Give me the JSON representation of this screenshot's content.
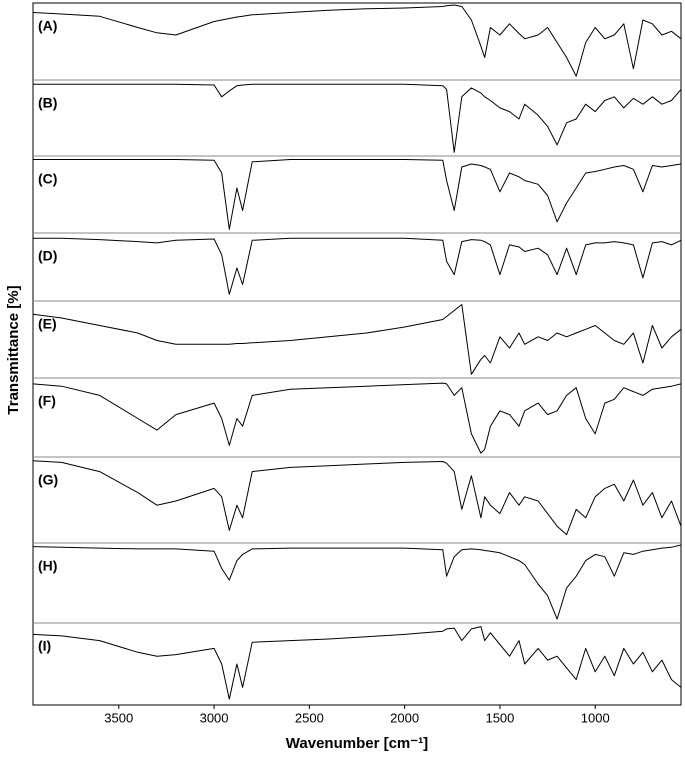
{
  "chart_data": {
    "type": "line",
    "xlabel": "Wavenumber [cm⁻¹]",
    "ylabel": "Transmittance [%]",
    "xlim": [
      3950,
      550
    ],
    "xticks": [
      3500,
      3000,
      2500,
      2000,
      1500,
      1000
    ],
    "x": [
      3950,
      3800,
      3600,
      3400,
      3300,
      3200,
      3000,
      2960,
      2920,
      2880,
      2850,
      2800,
      2600,
      2400,
      2200,
      2000,
      1800,
      1780,
      1740,
      1700,
      1650,
      1600,
      1580,
      1550,
      1500,
      1450,
      1400,
      1370,
      1300,
      1250,
      1200,
      1150,
      1100,
      1050,
      1000,
      950,
      900,
      850,
      800,
      750,
      700,
      650,
      600,
      550
    ],
    "ylim": [
      0,
      100
    ],
    "series": [
      {
        "name": "(A)",
        "color": "#000000",
        "values": [
          90,
          88,
          85,
          70,
          63,
          60,
          78,
          80,
          82,
          84,
          85,
          87,
          90,
          93,
          95,
          96,
          98,
          99,
          100,
          98,
          80,
          45,
          30,
          70,
          60,
          75,
          62,
          55,
          60,
          70,
          50,
          30,
          5,
          50,
          70,
          55,
          60,
          75,
          15,
          80,
          75,
          60,
          65,
          55
        ]
      },
      {
        "name": "(B)",
        "color": "#000000",
        "values": [
          97,
          97,
          97,
          97,
          97,
          97,
          96,
          80,
          88,
          95,
          96,
          97,
          97,
          97,
          97,
          97,
          95,
          90,
          5,
          80,
          92,
          85,
          80,
          75,
          65,
          60,
          50,
          70,
          55,
          40,
          15,
          45,
          50,
          70,
          60,
          75,
          80,
          65,
          78,
          70,
          80,
          70,
          75,
          90
        ]
      },
      {
        "name": "(C)",
        "color": "#000000",
        "values": [
          98,
          98,
          98,
          98,
          98,
          98,
          97,
          80,
          5,
          60,
          30,
          95,
          98,
          98,
          98,
          98,
          97,
          70,
          30,
          88,
          92,
          90,
          88,
          85,
          55,
          80,
          75,
          70,
          65,
          50,
          15,
          40,
          60,
          80,
          82,
          85,
          88,
          90,
          85,
          55,
          90,
          88,
          90,
          92
        ]
      },
      {
        "name": "(D)",
        "color": "#000000",
        "values": [
          95,
          95,
          93,
          90,
          88,
          92,
          94,
          70,
          10,
          50,
          25,
          92,
          95,
          95,
          95,
          95,
          92,
          60,
          40,
          90,
          93,
          92,
          90,
          85,
          40,
          85,
          82,
          75,
          80,
          70,
          40,
          80,
          40,
          85,
          88,
          88,
          90,
          88,
          85,
          35,
          88,
          90,
          85,
          92
        ]
      },
      {
        "name": "(E)",
        "color": "#000000",
        "values": [
          85,
          80,
          70,
          60,
          50,
          45,
          45,
          45,
          45,
          46,
          46,
          47,
          50,
          55,
          60,
          68,
          78,
          82,
          90,
          98,
          5,
          25,
          30,
          20,
          55,
          40,
          60,
          45,
          55,
          50,
          60,
          55,
          60,
          65,
          70,
          60,
          50,
          45,
          60,
          20,
          70,
          40,
          55,
          65
        ]
      },
      {
        "name": "(F)",
        "color": "#000000",
        "values": [
          95,
          92,
          80,
          50,
          35,
          55,
          70,
          50,
          15,
          50,
          40,
          80,
          88,
          90,
          92,
          94,
          96,
          95,
          80,
          90,
          30,
          5,
          10,
          40,
          60,
          55,
          40,
          60,
          70,
          55,
          60,
          80,
          90,
          50,
          30,
          70,
          75,
          90,
          85,
          80,
          88,
          90,
          92,
          95
        ]
      },
      {
        "name": "(G)",
        "color": "#000000",
        "values": [
          98,
          96,
          85,
          60,
          45,
          50,
          65,
          55,
          15,
          45,
          30,
          85,
          90,
          92,
          94,
          96,
          97,
          95,
          85,
          40,
          80,
          30,
          55,
          45,
          35,
          60,
          45,
          55,
          50,
          35,
          20,
          10,
          40,
          30,
          55,
          65,
          70,
          50,
          75,
          45,
          60,
          30,
          50,
          20
        ]
      },
      {
        "name": "(H)",
        "color": "#000000",
        "values": [
          98,
          97,
          96,
          95,
          95,
          95,
          92,
          70,
          55,
          80,
          88,
          95,
          96,
          96,
          96,
          96,
          94,
          60,
          85,
          94,
          95,
          94,
          93,
          92,
          90,
          85,
          80,
          75,
          50,
          35,
          5,
          45,
          60,
          80,
          88,
          85,
          60,
          90,
          88,
          92,
          94,
          96,
          97,
          100
        ]
      },
      {
        "name": "(I)",
        "color": "#000000",
        "values": [
          88,
          86,
          80,
          65,
          60,
          62,
          70,
          50,
          5,
          50,
          20,
          78,
          80,
          82,
          85,
          88,
          92,
          95,
          96,
          80,
          95,
          98,
          80,
          90,
          75,
          60,
          80,
          50,
          70,
          55,
          60,
          45,
          30,
          70,
          40,
          60,
          35,
          70,
          50,
          65,
          40,
          55,
          30,
          20
        ]
      }
    ]
  }
}
